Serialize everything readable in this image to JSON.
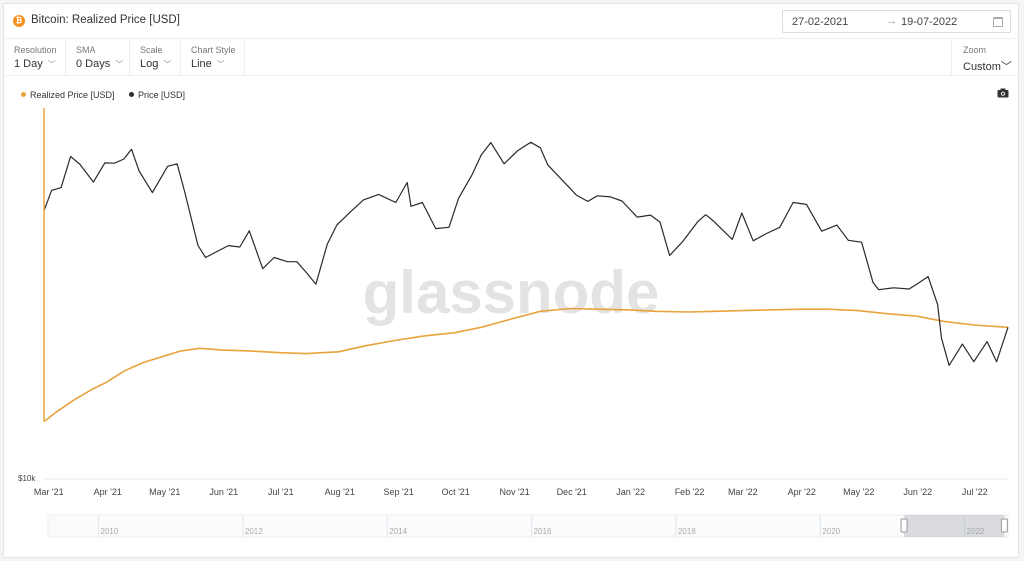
{
  "header": {
    "coin_icon": "bitcoin-icon",
    "title": "Bitcoin: Realized Price [USD]",
    "date_from": "27-02-2021",
    "date_arrow": "→",
    "date_to": "19-07-2022",
    "calendar_icon": "calendar-icon"
  },
  "controls": [
    {
      "label": "Resolution",
      "value": "1 Day"
    },
    {
      "label": "SMA",
      "value": "0 Days"
    },
    {
      "label": "Scale",
      "value": "Log"
    },
    {
      "label": "Chart Style",
      "value": "Line"
    }
  ],
  "zoom": {
    "label": "Zoom",
    "value": "Custom"
  },
  "camera_icon": "camera-icon",
  "watermark": "glassnode",
  "colors": {
    "realized": "#e8a33c",
    "price": "#2a2a2a",
    "navigator": "#9aa0a6"
  },
  "chart_data": {
    "type": "line",
    "title": "Bitcoin: Realized Price [USD]",
    "yscale": "log",
    "ylim": [
      10000,
      80000
    ],
    "ytick_labels": [
      "$10k"
    ],
    "xlim": [
      "2021-02-27",
      "2022-07-19"
    ],
    "xtick_labels": [
      {
        "date": "2021-03-01",
        "label": "Mar '21"
      },
      {
        "date": "2021-04-01",
        "label": "Apr '21"
      },
      {
        "date": "2021-05-01",
        "label": "May '21"
      },
      {
        "date": "2021-06-01",
        "label": "Jun '21"
      },
      {
        "date": "2021-07-01",
        "label": "Jul '21"
      },
      {
        "date": "2021-08-01",
        "label": "Aug '21"
      },
      {
        "date": "2021-09-01",
        "label": "Sep '21"
      },
      {
        "date": "2021-10-01",
        "label": "Oct '21"
      },
      {
        "date": "2021-11-01",
        "label": "Nov '21"
      },
      {
        "date": "2021-12-01",
        "label": "Dec '21"
      },
      {
        "date": "2022-01-01",
        "label": "Jan '22"
      },
      {
        "date": "2022-02-01",
        "label": "Feb '22"
      },
      {
        "date": "2022-03-01",
        "label": "Mar '22"
      },
      {
        "date": "2022-04-01",
        "label": "Apr '22"
      },
      {
        "date": "2022-05-01",
        "label": "May '22"
      },
      {
        "date": "2022-06-01",
        "label": "Jun '22"
      },
      {
        "date": "2022-07-01",
        "label": "Jul '22"
      }
    ],
    "legend_position": "top-left",
    "series": [
      {
        "name": "Realized Price [USD]",
        "color": "#e8a33c",
        "points": [
          [
            "2021-02-27",
            13800
          ],
          [
            "2021-03-05",
            14500
          ],
          [
            "2021-03-15",
            15600
          ],
          [
            "2021-03-25",
            16600
          ],
          [
            "2021-04-01",
            17200
          ],
          [
            "2021-04-10",
            18300
          ],
          [
            "2021-04-20",
            19200
          ],
          [
            "2021-05-01",
            19900
          ],
          [
            "2021-05-10",
            20500
          ],
          [
            "2021-05-20",
            20800
          ],
          [
            "2021-06-01",
            20600
          ],
          [
            "2021-06-15",
            20500
          ],
          [
            "2021-07-01",
            20300
          ],
          [
            "2021-07-15",
            20200
          ],
          [
            "2021-08-01",
            20400
          ],
          [
            "2021-08-15",
            21100
          ],
          [
            "2021-09-01",
            21800
          ],
          [
            "2021-09-15",
            22300
          ],
          [
            "2021-10-01",
            22700
          ],
          [
            "2021-10-15",
            23400
          ],
          [
            "2021-11-01",
            24600
          ],
          [
            "2021-11-15",
            25600
          ],
          [
            "2021-12-01",
            26000
          ],
          [
            "2021-12-15",
            25900
          ],
          [
            "2022-01-01",
            25800
          ],
          [
            "2022-01-15",
            25600
          ],
          [
            "2022-02-01",
            25500
          ],
          [
            "2022-02-15",
            25600
          ],
          [
            "2022-03-01",
            25700
          ],
          [
            "2022-03-15",
            25800
          ],
          [
            "2022-04-01",
            25900
          ],
          [
            "2022-04-15",
            25900
          ],
          [
            "2022-05-01",
            25700
          ],
          [
            "2022-05-15",
            25300
          ],
          [
            "2022-06-01",
            24900
          ],
          [
            "2022-06-15",
            24200
          ],
          [
            "2022-07-01",
            23700
          ],
          [
            "2022-07-19",
            23400
          ]
        ]
      },
      {
        "name": "Price [USD]",
        "color": "#2a2a2a",
        "points": [
          [
            "2021-02-27",
            45000
          ],
          [
            "2021-03-03",
            50400
          ],
          [
            "2021-03-08",
            51200
          ],
          [
            "2021-03-13",
            61000
          ],
          [
            "2021-03-18",
            58300
          ],
          [
            "2021-03-25",
            52800
          ],
          [
            "2021-03-31",
            58800
          ],
          [
            "2021-04-05",
            58700
          ],
          [
            "2021-04-10",
            60100
          ],
          [
            "2021-04-14",
            63500
          ],
          [
            "2021-04-18",
            56200
          ],
          [
            "2021-04-25",
            49800
          ],
          [
            "2021-05-03",
            57700
          ],
          [
            "2021-05-08",
            58500
          ],
          [
            "2021-05-12",
            50000
          ],
          [
            "2021-05-19",
            37000
          ],
          [
            "2021-05-23",
            34600
          ],
          [
            "2021-05-28",
            35600
          ],
          [
            "2021-06-04",
            37000
          ],
          [
            "2021-06-10",
            36700
          ],
          [
            "2021-06-15",
            40200
          ],
          [
            "2021-06-22",
            32500
          ],
          [
            "2021-06-28",
            34600
          ],
          [
            "2021-07-05",
            33800
          ],
          [
            "2021-07-10",
            33800
          ],
          [
            "2021-07-15",
            31800
          ],
          [
            "2021-07-20",
            29800
          ],
          [
            "2021-07-26",
            37300
          ],
          [
            "2021-07-31",
            41500
          ],
          [
            "2021-08-07",
            44600
          ],
          [
            "2021-08-14",
            47800
          ],
          [
            "2021-08-22",
            49300
          ],
          [
            "2021-08-31",
            47100
          ],
          [
            "2021-09-06",
            52700
          ],
          [
            "2021-09-08",
            46100
          ],
          [
            "2021-09-14",
            47100
          ],
          [
            "2021-09-21",
            40700
          ],
          [
            "2021-09-28",
            41000
          ],
          [
            "2021-10-03",
            48200
          ],
          [
            "2021-10-10",
            54900
          ],
          [
            "2021-10-15",
            61500
          ],
          [
            "2021-10-20",
            65900
          ],
          [
            "2021-10-27",
            58500
          ],
          [
            "2021-11-03",
            62900
          ],
          [
            "2021-11-10",
            66000
          ],
          [
            "2021-11-15",
            64000
          ],
          [
            "2021-11-19",
            58100
          ],
          [
            "2021-11-26",
            53700
          ],
          [
            "2021-12-04",
            49100
          ],
          [
            "2021-12-10",
            47400
          ],
          [
            "2021-12-15",
            48900
          ],
          [
            "2021-12-22",
            48600
          ],
          [
            "2021-12-28",
            47500
          ],
          [
            "2022-01-05",
            43400
          ],
          [
            "2022-01-12",
            43900
          ],
          [
            "2022-01-17",
            42200
          ],
          [
            "2022-01-22",
            35000
          ],
          [
            "2022-01-29",
            37900
          ],
          [
            "2022-02-06",
            42400
          ],
          [
            "2022-02-10",
            44000
          ],
          [
            "2022-02-14",
            42500
          ],
          [
            "2022-02-24",
            38300
          ],
          [
            "2022-03-01",
            44400
          ],
          [
            "2022-03-07",
            38000
          ],
          [
            "2022-03-14",
            39600
          ],
          [
            "2022-03-21",
            41000
          ],
          [
            "2022-03-28",
            47100
          ],
          [
            "2022-04-04",
            46600
          ],
          [
            "2022-04-12",
            40100
          ],
          [
            "2022-04-20",
            41500
          ],
          [
            "2022-04-26",
            38100
          ],
          [
            "2022-05-03",
            37700
          ],
          [
            "2022-05-09",
            30100
          ],
          [
            "2022-05-12",
            28900
          ],
          [
            "2022-05-20",
            29200
          ],
          [
            "2022-05-28",
            29000
          ],
          [
            "2022-06-01",
            29800
          ],
          [
            "2022-06-07",
            31100
          ],
          [
            "2022-06-12",
            26600
          ],
          [
            "2022-06-14",
            22000
          ],
          [
            "2022-06-18",
            18900
          ],
          [
            "2022-06-25",
            21300
          ],
          [
            "2022-07-01",
            19300
          ],
          [
            "2022-07-08",
            21600
          ],
          [
            "2022-07-13",
            19300
          ],
          [
            "2022-07-19",
            23400
          ]
        ]
      }
    ]
  },
  "navigator": {
    "labels": [
      "2010",
      "2012",
      "2014",
      "2016",
      "2018",
      "2020",
      "2022"
    ]
  }
}
